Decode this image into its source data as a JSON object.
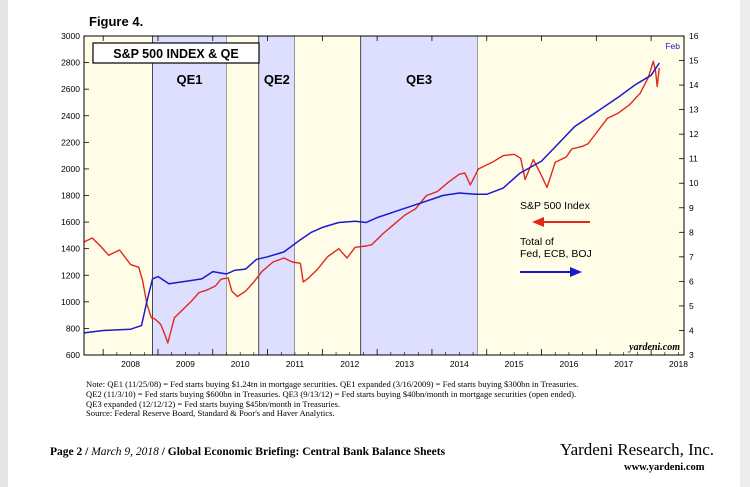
{
  "figure_label": "Figure 4.",
  "colors": {
    "sp500": "#e0281c",
    "balance": "#1a1acc",
    "qe_band": "#dedeff",
    "non_qe_band": "#fffde8"
  },
  "chart_data": {
    "type": "line",
    "title": "S&P 500 INDEX & QE",
    "watermark": "yardeni.com",
    "x_range": [
      2007.65,
      2018.6
    ],
    "x_ticks": [
      "2008",
      "2009",
      "2010",
      "2011",
      "2012",
      "2013",
      "2014",
      "2015",
      "2016",
      "2017",
      "2018"
    ],
    "y_left": {
      "range": [
        600,
        3000
      ],
      "ticks": [
        600,
        800,
        1000,
        1200,
        1400,
        1600,
        1800,
        2000,
        2200,
        2400,
        2600,
        2800,
        3000
      ]
    },
    "y_right": {
      "range": [
        3,
        16
      ],
      "ticks": [
        3,
        4,
        5,
        6,
        7,
        8,
        9,
        10,
        11,
        12,
        13,
        14,
        15,
        16
      ]
    },
    "qe_periods": [
      {
        "name": "QE1",
        "start": 2008.9,
        "end": 2010.25
      },
      {
        "name": "QE2",
        "start": 2010.84,
        "end": 2011.5
      },
      {
        "name": "QE3",
        "start": 2012.7,
        "end": 2014.83
      }
    ],
    "series": [
      {
        "name": "S&P 500 Index",
        "axis": "left",
        "x": [
          2007.65,
          2007.8,
          2007.95,
          2008.1,
          2008.3,
          2008.5,
          2008.65,
          2008.72,
          2008.8,
          2008.88,
          2008.95,
          2009.05,
          2009.12,
          2009.18,
          2009.3,
          2009.45,
          2009.6,
          2009.75,
          2009.9,
          2010.05,
          2010.15,
          2010.28,
          2010.35,
          2010.45,
          2010.6,
          2010.75,
          2010.9,
          2011.1,
          2011.3,
          2011.45,
          2011.6,
          2011.65,
          2011.75,
          2011.9,
          2012.1,
          2012.3,
          2012.45,
          2012.6,
          2012.8,
          2012.9,
          2013.1,
          2013.3,
          2013.5,
          2013.7,
          2013.9,
          2014.1,
          2014.3,
          2014.5,
          2014.6,
          2014.7,
          2014.85,
          2015.1,
          2015.3,
          2015.5,
          2015.62,
          2015.7,
          2015.85,
          2016.0,
          2016.1,
          2016.25,
          2016.45,
          2016.55,
          2016.75,
          2016.85,
          2017.0,
          2017.2,
          2017.4,
          2017.6,
          2017.8,
          2017.95,
          2018.04,
          2018.08,
          2018.11,
          2018.15
        ],
        "values": [
          1450,
          1480,
          1420,
          1350,
          1390,
          1280,
          1260,
          1160,
          980,
          880,
          870,
          830,
          760,
          690,
          880,
          940,
          1000,
          1070,
          1090,
          1120,
          1170,
          1180,
          1080,
          1040,
          1080,
          1150,
          1230,
          1300,
          1330,
          1300,
          1290,
          1150,
          1180,
          1240,
          1340,
          1400,
          1330,
          1410,
          1420,
          1430,
          1510,
          1580,
          1650,
          1700,
          1800,
          1830,
          1900,
          1960,
          1970,
          1880,
          2000,
          2050,
          2100,
          2110,
          2080,
          1920,
          2070,
          1950,
          1860,
          2050,
          2090,
          2150,
          2170,
          2190,
          2270,
          2380,
          2420,
          2480,
          2570,
          2690,
          2810,
          2740,
          2620,
          2760
        ]
      },
      {
        "name": "Total of Fed, ECB, BOJ",
        "axis": "right",
        "end_label": "Feb",
        "x": [
          2007.65,
          2008.0,
          2008.5,
          2008.7,
          2008.8,
          2008.9,
          2009.0,
          2009.2,
          2009.5,
          2009.8,
          2010.0,
          2010.25,
          2010.4,
          2010.6,
          2010.8,
          2011.0,
          2011.3,
          2011.6,
          2011.8,
          2012.0,
          2012.3,
          2012.6,
          2012.8,
          2013.0,
          2013.4,
          2013.8,
          2014.2,
          2014.5,
          2014.8,
          2015.0,
          2015.3,
          2015.6,
          2016.0,
          2016.3,
          2016.6,
          2017.0,
          2017.4,
          2017.7,
          2018.0,
          2018.15
        ],
        "values": [
          3.9,
          4.0,
          4.05,
          4.2,
          5.2,
          6.1,
          6.2,
          5.9,
          6.0,
          6.1,
          6.4,
          6.3,
          6.45,
          6.5,
          6.9,
          7.0,
          7.2,
          7.7,
          8.0,
          8.2,
          8.4,
          8.45,
          8.4,
          8.6,
          8.9,
          9.2,
          9.5,
          9.6,
          9.55,
          9.55,
          9.8,
          10.4,
          10.9,
          11.6,
          12.3,
          12.9,
          13.5,
          14.0,
          14.4,
          14.9
        ]
      }
    ],
    "legend": [
      {
        "label": "S&P 500 Index",
        "arrow": "left"
      },
      {
        "label_lines": [
          "Total of",
          "Fed, ECB, BOJ"
        ],
        "arrow": "right"
      }
    ]
  },
  "notes": [
    "Note: QE1 (11/25/08) = Fed starts buying $1.24tn in mortgage securities. QE1 expanded (3/16/2009) = Fed starts buying $300bn in Treasuries.",
    "QE2 (11/3/10) = Fed starts buying $600bn in Treasuries. QE3 (9/13/12) = Fed starts buying $40bn/month in mortgage securities (open ended).",
    "QE3 expanded (12/12/12) = Fed starts buying $45bn/month in Treasuries.",
    "Source: Federal Reserve Board, Standard & Poor's and Haver Analytics."
  ],
  "footer": {
    "page": "Page 2",
    "sep": "/",
    "date": "March 9, 2018",
    "sep2": "/",
    "title": "Global Economic Briefing: Central Bank Balance Sheets",
    "brand": "Yardeni Research, Inc.",
    "url": "www.yardeni.com"
  }
}
